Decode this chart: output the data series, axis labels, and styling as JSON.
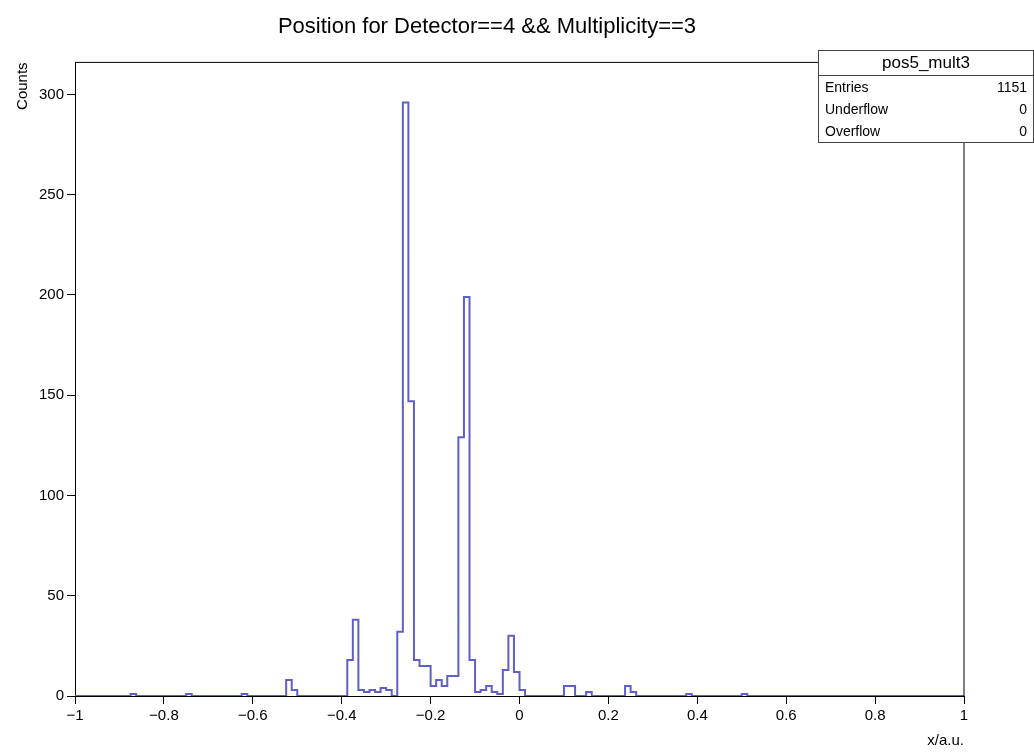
{
  "chart_data": {
    "type": "histogram",
    "title": "Position for Detector==4 && Multiplicity==3",
    "xlabel": "x/a.u.",
    "ylabel": "Counts",
    "annotations": [
      "pos5_mult3",
      "Entries",
      "1151",
      "Underflow",
      "0",
      "Overflow",
      "0"
    ],
    "color": "#5f5fc8",
    "bins": [
      -1,
      -0.9875,
      -0.975,
      -0.9625,
      -0.95,
      -0.9375,
      -0.925,
      -0.9125,
      -0.9,
      -0.8875,
      -0.875,
      -0.8625,
      -0.85,
      -0.8375,
      -0.825,
      -0.8125,
      -0.8,
      -0.7875,
      -0.775,
      -0.7625,
      -0.75,
      -0.7375,
      -0.725,
      -0.7125,
      -0.7,
      -0.6875,
      -0.675,
      -0.6625,
      -0.65,
      -0.6375,
      -0.625,
      -0.6125,
      -0.6,
      -0.5875,
      -0.575,
      -0.5625,
      -0.55,
      -0.5375,
      -0.525,
      -0.5125,
      -0.5,
      -0.4875,
      -0.475,
      -0.4625,
      -0.45,
      -0.4375,
      -0.425,
      -0.4125,
      -0.4,
      -0.3875,
      -0.375,
      -0.3625,
      -0.35,
      -0.3375,
      -0.325,
      -0.3125,
      -0.3,
      -0.2875,
      -0.275,
      -0.2625,
      -0.25,
      -0.2375,
      -0.225,
      -0.2125,
      -0.2,
      -0.1875,
      -0.175,
      -0.1625,
      -0.15,
      -0.1375,
      -0.125,
      -0.1125,
      -0.1,
      -0.0875,
      -0.075,
      -0.0625,
      -0.05,
      -0.0375,
      -0.025,
      -0.0125,
      0,
      0.0125,
      0.025,
      0.0375,
      0.05,
      0.0625,
      0.075,
      0.0875,
      0.1,
      0.1125,
      0.125,
      0.1375,
      0.15,
      0.1625,
      0.175,
      0.1875,
      0.2,
      0.2125,
      0.225,
      0.2375,
      0.25,
      0.2625,
      0.275,
      0.2875,
      0.3,
      0.3125,
      0.325,
      0.3375,
      0.35,
      0.3625,
      0.375,
      0.3875,
      0.4,
      0.4125,
      0.425,
      0.4375,
      0.45,
      0.4625,
      0.475,
      0.4875,
      0.5,
      0.5125,
      0.525,
      0.5375,
      0.55,
      0.5625,
      0.575,
      0.5875,
      0.6,
      0.6125,
      0.625,
      0.6375,
      0.65,
      0.6625,
      0.675,
      0.6875,
      0.7,
      0.7125,
      0.725,
      0.7375,
      0.75,
      0.7625,
      0.775,
      0.7875,
      0.8,
      0.8125,
      0.825,
      0.8375,
      0.85,
      0.8625,
      0.875,
      0.8875,
      0.9,
      0.9125,
      0.925,
      0.9375,
      0.95,
      0.9625,
      0.975,
      0.9875,
      1
    ],
    "values": [
      0,
      0,
      0,
      0,
      0,
      0,
      0,
      0,
      0,
      0,
      1,
      0,
      0,
      0,
      0,
      0,
      0,
      0,
      0,
      0,
      1,
      0,
      0,
      0,
      0,
      0,
      0,
      0,
      0,
      0,
      1,
      0,
      0,
      0,
      0,
      0,
      0,
      0,
      8,
      3,
      0,
      0,
      0,
      0,
      0,
      0,
      0,
      0,
      0,
      18,
      38,
      3,
      2,
      3,
      2,
      4,
      3,
      0,
      32,
      296,
      147,
      18,
      15,
      15,
      5,
      8,
      5,
      10,
      10,
      129,
      199,
      18,
      2,
      3,
      5,
      2,
      1,
      13,
      30,
      12,
      3,
      0,
      0,
      0,
      0,
      0,
      0,
      0,
      5,
      5,
      0,
      0,
      2,
      0,
      0,
      0,
      0,
      0,
      0,
      5,
      2,
      0,
      0,
      0,
      0,
      0,
      0,
      0,
      0,
      0,
      1,
      0,
      0,
      0,
      0,
      0,
      0,
      0,
      0,
      0,
      1,
      0,
      0,
      0,
      0,
      0,
      0,
      0,
      0,
      0,
      0,
      0,
      0,
      0,
      0,
      0,
      0,
      0,
      0,
      0,
      0,
      0,
      0,
      0,
      0,
      0,
      0,
      0,
      0,
      0,
      0,
      0,
      0,
      0,
      0,
      0,
      0,
      0,
      0,
      0
    ],
    "xlim": [
      -1,
      1
    ],
    "xticks": [
      -1,
      -0.8,
      -0.6,
      -0.4,
      -0.2,
      0,
      0.2,
      0.4,
      0.6,
      0.8,
      1
    ],
    "ylim": [
      0,
      316
    ],
    "yticks": [
      0,
      50,
      100,
      150,
      200,
      250,
      300
    ],
    "grid": false,
    "legend": false
  }
}
